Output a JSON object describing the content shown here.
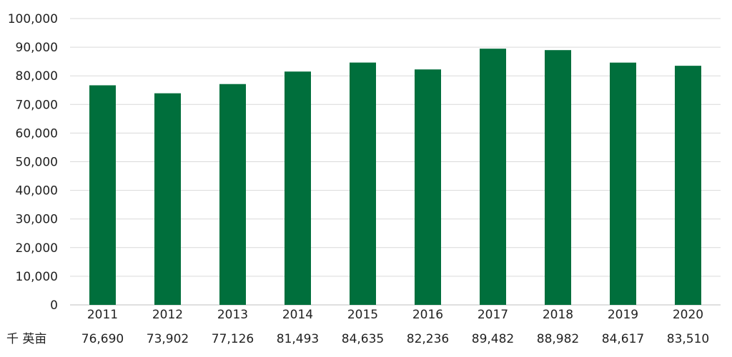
{
  "chart_data": {
    "type": "bar",
    "title": "",
    "xlabel": "",
    "ylabel": "",
    "categories": [
      "2011",
      "2012",
      "2013",
      "2014",
      "2015",
      "2016",
      "2017",
      "2018",
      "2019",
      "2020"
    ],
    "values": [
      76690,
      73902,
      77126,
      81493,
      84635,
      82236,
      89482,
      88982,
      84617,
      83510
    ],
    "value_labels": [
      "76,690",
      "73,902",
      "77,126",
      "81,493",
      "84,635",
      "82,236",
      "89,482",
      "88,982",
      "84,617",
      "83,510"
    ],
    "ylim": [
      0,
      100000
    ],
    "yticks": [
      0,
      10000,
      20000,
      30000,
      40000,
      50000,
      60000,
      70000,
      80000,
      90000,
      100000
    ],
    "ytick_labels": [
      "0",
      "10,000",
      "20,000",
      "30,000",
      "40,000",
      "50,000",
      "60,000",
      "70,000",
      "80,000",
      "90,000",
      "100,000"
    ],
    "unit_label": "千 英亩",
    "grid": true,
    "legend": "none",
    "bar_color": "#006f3c",
    "grid_color": "#d9d9d9"
  }
}
